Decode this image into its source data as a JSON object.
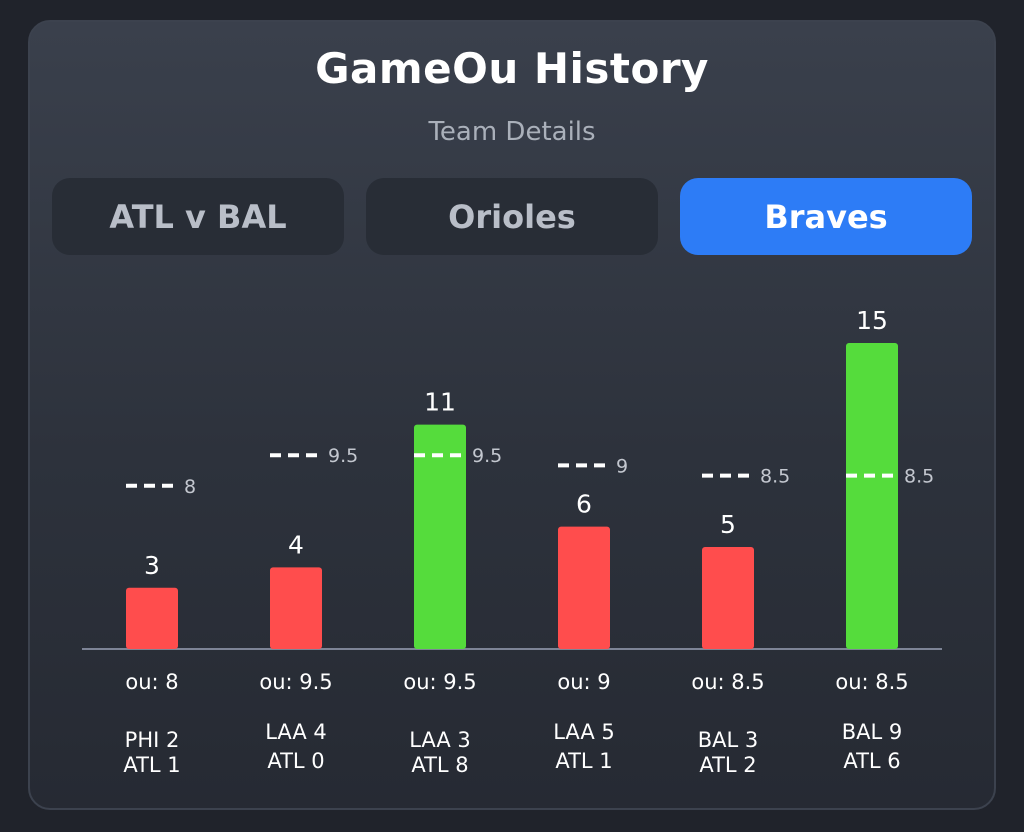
{
  "header": {
    "title": "GameOu History",
    "subtitle": "Team Details"
  },
  "tabs": [
    {
      "label": "ATL v BAL",
      "active": false
    },
    {
      "label": "Orioles",
      "active": false
    },
    {
      "label": "Braves",
      "active": true
    }
  ],
  "colors": {
    "over": "#55dc3c",
    "under": "#ff4d4d",
    "accent": "#2d7cf6",
    "ou_line": "#ffffff"
  },
  "chart_data": {
    "type": "bar",
    "title": "",
    "xlabel": "",
    "ylabel": "",
    "ylim": [
      0,
      15
    ],
    "grid": false,
    "legend": "none",
    "bars": [
      {
        "total": 3,
        "ou": 8,
        "ou_label": "8",
        "ou_text": "ou: 8",
        "result": "under",
        "score_line1": "PHI 2",
        "score_line2": "ATL 1"
      },
      {
        "total": 4,
        "ou": 9.5,
        "ou_label": "9.5",
        "ou_text": "ou: 9.5",
        "result": "under",
        "score_line1": "LAA 4",
        "score_line2": "ATL 0"
      },
      {
        "total": 11,
        "ou": 9.5,
        "ou_label": "9.5",
        "ou_text": "ou: 9.5",
        "result": "over",
        "score_line1": "LAA 3",
        "score_line2": "ATL 8"
      },
      {
        "total": 6,
        "ou": 9,
        "ou_label": "9",
        "ou_text": "ou: 9",
        "result": "under",
        "score_line1": "LAA 5",
        "score_line2": "ATL 1"
      },
      {
        "total": 5,
        "ou": 8.5,
        "ou_label": "8.5",
        "ou_text": "ou: 8.5",
        "result": "under",
        "score_line1": "BAL 3",
        "score_line2": "ATL 2"
      },
      {
        "total": 15,
        "ou": 8.5,
        "ou_label": "8.5",
        "ou_text": "ou: 8.5",
        "result": "over",
        "score_line1": "BAL 9",
        "score_line2": "ATL 6"
      }
    ]
  }
}
